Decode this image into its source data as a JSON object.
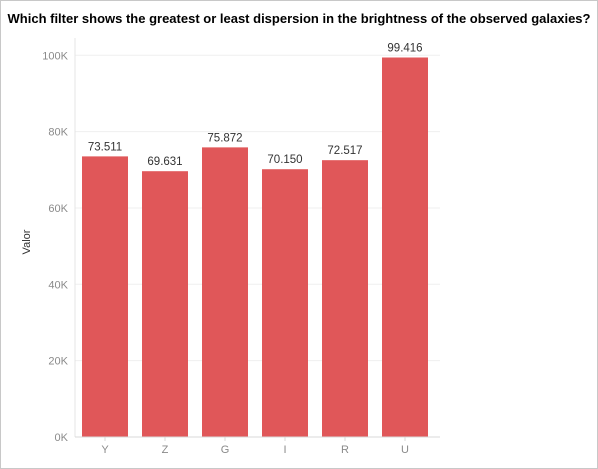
{
  "title": "Which filter shows the greatest or least dispersion in the brightness of the observed galaxies?",
  "chart_data": {
    "type": "bar",
    "title": "Which filter shows the greatest or least dispersion in the brightness of the observed galaxies?",
    "categories": [
      "Y",
      "Z",
      "G",
      "I",
      "R",
      "U"
    ],
    "values": [
      73511,
      69631,
      75872,
      70150,
      72517,
      99416
    ],
    "value_labels": [
      "73.511",
      "69.631",
      "75.872",
      "70.150",
      "72.517",
      "99.416"
    ],
    "ylabel": "Valor",
    "xlabel": "",
    "ylim": [
      0,
      104000
    ],
    "yticks": [
      0,
      20000,
      40000,
      60000,
      80000,
      100000
    ],
    "ytick_labels": [
      "0K",
      "20K",
      "40K",
      "60K",
      "80K",
      "100K"
    ],
    "bar_color": "#e05759",
    "grid": true
  }
}
